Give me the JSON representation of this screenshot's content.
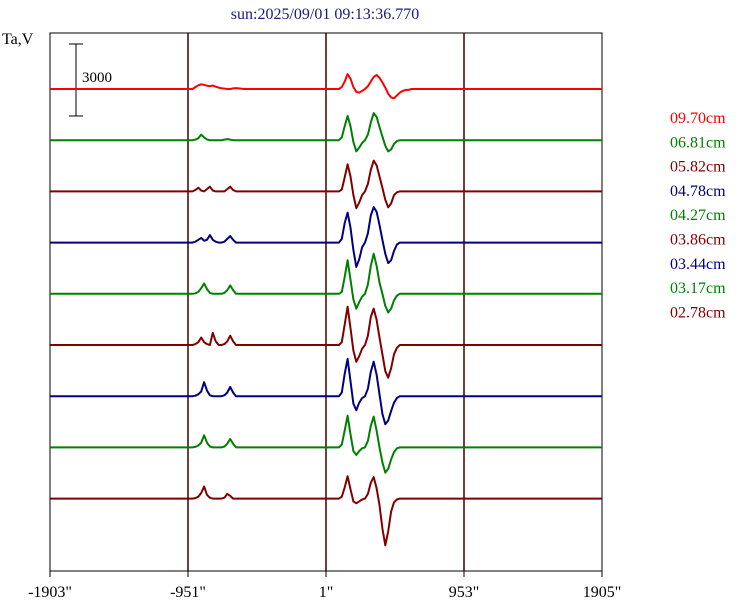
{
  "chart_data": {
    "type": "line",
    "title": "sun:2025/09/01 09:13:36.770",
    "ylabel": "Ta,V",
    "scale_bar_label": "3000",
    "scale_bar_value": 3000,
    "xlim": [
      -1903,
      1905
    ],
    "x_ticks": [
      {
        "value": -1903,
        "label": "-1903\""
      },
      {
        "value": -951,
        "label": "-951\""
      },
      {
        "value": 1,
        "label": "1\""
      },
      {
        "value": 953,
        "label": "953\""
      },
      {
        "value": 1905,
        "label": "1905\""
      }
    ],
    "vertical_lines": [
      -951,
      1,
      953
    ],
    "grid": false,
    "legend_placement": "right",
    "x_samples": [
      -1903,
      -1700,
      -1500,
      -1300,
      -1100,
      -1000,
      -980,
      -960,
      -940,
      -920,
      -900,
      -880,
      -860,
      -840,
      -820,
      -800,
      -780,
      -760,
      -740,
      -720,
      -700,
      -680,
      -660,
      -640,
      -620,
      -600,
      -580,
      -560,
      -540,
      -520,
      -500,
      -480,
      -460,
      -440,
      -400,
      -300,
      -200,
      -100,
      -50,
      0,
      30,
      60,
      90,
      110,
      130,
      150,
      170,
      190,
      210,
      230,
      250,
      270,
      290,
      310,
      330,
      350,
      370,
      390,
      410,
      430,
      450,
      470,
      490,
      510,
      530,
      550,
      570,
      590,
      610,
      630,
      650,
      680,
      710,
      740,
      780,
      820,
      870,
      920,
      980,
      1050,
      1150,
      1300,
      1500,
      1700,
      1905
    ],
    "series": [
      {
        "name": "09.70cm",
        "color": "#ff0000",
        "values": [
          0,
          0,
          0,
          0,
          0,
          0,
          0,
          0,
          0,
          0,
          200,
          400,
          500,
          450,
          350,
          300,
          380,
          250,
          150,
          80,
          40,
          0,
          0,
          60,
          100,
          60,
          20,
          0,
          0,
          0,
          0,
          0,
          0,
          0,
          0,
          0,
          0,
          0,
          0,
          0,
          0,
          0,
          0,
          200,
          800,
          1600,
          1100,
          200,
          -300,
          -400,
          -200,
          0,
          300,
          800,
          1300,
          1500,
          1200,
          700,
          150,
          -500,
          -900,
          -1000,
          -700,
          -400,
          -200,
          -100,
          -100,
          0,
          0,
          0,
          0,
          0,
          0,
          0,
          0,
          0,
          0,
          0,
          0,
          0,
          0,
          0,
          0,
          0,
          0
        ]
      },
      {
        "name": "06.81cm",
        "color": "#008000",
        "values": [
          0,
          0,
          0,
          0,
          0,
          0,
          0,
          0,
          0,
          0,
          60,
          200,
          600,
          300,
          80,
          0,
          0,
          0,
          0,
          0,
          60,
          120,
          60,
          0,
          0,
          0,
          0,
          0,
          0,
          0,
          0,
          0,
          0,
          0,
          0,
          0,
          0,
          0,
          0,
          0,
          0,
          0,
          0,
          300,
          1500,
          2600,
          1500,
          -200,
          -1200,
          -800,
          -300,
          0,
          600,
          1900,
          2900,
          2500,
          1400,
          400,
          -600,
          -1200,
          -1000,
          -400,
          -100,
          0,
          0,
          0,
          0,
          0,
          0,
          0,
          0,
          0,
          0,
          0,
          0,
          0,
          0,
          0,
          0,
          0,
          0,
          0,
          0,
          0,
          0
        ]
      },
      {
        "name": "05.82cm",
        "color": "#800000",
        "values": [
          0,
          0,
          0,
          0,
          0,
          0,
          0,
          0,
          0,
          0,
          150,
          400,
          100,
          0,
          250,
          500,
          100,
          0,
          0,
          0,
          0,
          250,
          500,
          150,
          0,
          0,
          0,
          0,
          0,
          0,
          0,
          0,
          0,
          0,
          0,
          0,
          0,
          0,
          0,
          0,
          0,
          0,
          0,
          200,
          1500,
          2900,
          1600,
          -400,
          -1800,
          -1200,
          -400,
          0,
          800,
          2300,
          3300,
          2800,
          1600,
          400,
          -900,
          -1700,
          -1300,
          -400,
          -100,
          0,
          0,
          0,
          0,
          0,
          0,
          0,
          0,
          0,
          0,
          0,
          0,
          0,
          0,
          0,
          0,
          0,
          0,
          0,
          0,
          0,
          0
        ]
      },
      {
        "name": "04.78cm",
        "color": "#000080",
        "values": [
          0,
          0,
          0,
          0,
          0,
          0,
          0,
          0,
          0,
          0,
          100,
          300,
          500,
          200,
          300,
          800,
          300,
          100,
          0,
          0,
          100,
          400,
          700,
          300,
          0,
          0,
          0,
          0,
          0,
          0,
          0,
          0,
          0,
          0,
          0,
          0,
          0,
          0,
          0,
          0,
          0,
          0,
          0,
          400,
          2100,
          3200,
          1600,
          -800,
          -2600,
          -1800,
          -500,
          0,
          1000,
          2900,
          3800,
          3300,
          1900,
          300,
          -1200,
          -2200,
          -1900,
          -900,
          -200,
          0,
          0,
          0,
          0,
          0,
          0,
          0,
          0,
          0,
          0,
          0,
          0,
          0,
          0,
          0,
          0,
          0,
          0,
          0,
          0,
          0,
          0
        ]
      },
      {
        "name": "04.27cm",
        "color": "#008000",
        "values": [
          0,
          0,
          0,
          0,
          0,
          0,
          0,
          0,
          0,
          0,
          50,
          200,
          600,
          1100,
          500,
          100,
          0,
          0,
          0,
          0,
          100,
          400,
          900,
          400,
          0,
          0,
          0,
          0,
          0,
          0,
          0,
          0,
          0,
          0,
          0,
          0,
          0,
          0,
          0,
          0,
          0,
          0,
          0,
          200,
          1800,
          3600,
          1500,
          -600,
          -1600,
          -900,
          -300,
          0,
          1000,
          3000,
          4300,
          3000,
          1200,
          0,
          -1300,
          -2000,
          -1600,
          -700,
          -200,
          0,
          0,
          0,
          0,
          0,
          0,
          0,
          0,
          0,
          0,
          0,
          0,
          0,
          0,
          0,
          0,
          0,
          0,
          0,
          0,
          0,
          0
        ]
      },
      {
        "name": "03.86cm",
        "color": "#800000",
        "values": [
          0,
          0,
          0,
          0,
          0,
          0,
          0,
          0,
          0,
          0,
          100,
          300,
          800,
          300,
          100,
          0,
          1300,
          400,
          0,
          0,
          100,
          400,
          1000,
          400,
          0,
          0,
          0,
          0,
          0,
          0,
          0,
          0,
          0,
          0,
          0,
          0,
          0,
          0,
          0,
          0,
          0,
          0,
          0,
          300,
          2200,
          4100,
          1800,
          -600,
          -1800,
          -1200,
          -400,
          0,
          1000,
          3000,
          3900,
          2700,
          800,
          -1000,
          -2800,
          -3500,
          -2500,
          -1000,
          -300,
          0,
          0,
          0,
          0,
          0,
          0,
          0,
          0,
          0,
          0,
          0,
          0,
          0,
          0,
          0,
          0,
          0,
          0,
          0,
          0,
          0,
          0
        ]
      },
      {
        "name": "03.44cm",
        "color": "#000080",
        "values": [
          0,
          0,
          0,
          0,
          0,
          0,
          0,
          0,
          0,
          0,
          50,
          200,
          500,
          1500,
          600,
          100,
          0,
          0,
          0,
          0,
          100,
          400,
          1000,
          400,
          0,
          0,
          0,
          0,
          0,
          0,
          0,
          0,
          0,
          0,
          0,
          0,
          0,
          0,
          0,
          0,
          0,
          0,
          0,
          400,
          2400,
          4000,
          1600,
          -800,
          -1500,
          -700,
          -200,
          0,
          800,
          2600,
          3700,
          2300,
          200,
          -1900,
          -3000,
          -2600,
          -1600,
          -700,
          -200,
          0,
          0,
          0,
          0,
          0,
          0,
          0,
          0,
          0,
          0,
          0,
          0,
          0,
          0,
          0,
          0,
          0,
          0,
          0,
          0,
          0,
          0
        ]
      },
      {
        "name": "03.17cm",
        "color": "#008000",
        "values": [
          0,
          0,
          0,
          0,
          0,
          0,
          0,
          0,
          0,
          0,
          50,
          200,
          500,
          1300,
          500,
          100,
          0,
          0,
          0,
          0,
          100,
          400,
          900,
          400,
          0,
          0,
          0,
          0,
          0,
          0,
          0,
          0,
          0,
          0,
          0,
          0,
          0,
          0,
          0,
          0,
          0,
          0,
          0,
          300,
          1800,
          3400,
          1400,
          -400,
          -800,
          -400,
          -100,
          0,
          700,
          2300,
          3300,
          1800,
          0,
          -1600,
          -2700,
          -2300,
          -1300,
          -500,
          -100,
          0,
          0,
          0,
          0,
          0,
          0,
          0,
          0,
          0,
          0,
          0,
          0,
          0,
          0,
          0,
          0,
          0,
          0,
          0,
          0,
          0,
          0
        ]
      },
      {
        "name": "02.78cm",
        "color": "#800000",
        "values": [
          0,
          0,
          0,
          0,
          0,
          0,
          0,
          0,
          0,
          0,
          50,
          200,
          600,
          1300,
          400,
          100,
          0,
          0,
          0,
          0,
          100,
          500,
          300,
          0,
          0,
          0,
          0,
          0,
          0,
          0,
          0,
          0,
          0,
          0,
          0,
          0,
          0,
          0,
          0,
          0,
          0,
          0,
          0,
          200,
          1200,
          2400,
          1000,
          -300,
          -500,
          -300,
          -100,
          0,
          500,
          1700,
          2300,
          1100,
          -700,
          -3200,
          -5000,
          -3500,
          -1400,
          -400,
          -100,
          0,
          0,
          0,
          0,
          0,
          0,
          0,
          0,
          0,
          0,
          0,
          0,
          0,
          0,
          0,
          0,
          0,
          0,
          0,
          0,
          0,
          0
        ]
      }
    ]
  }
}
